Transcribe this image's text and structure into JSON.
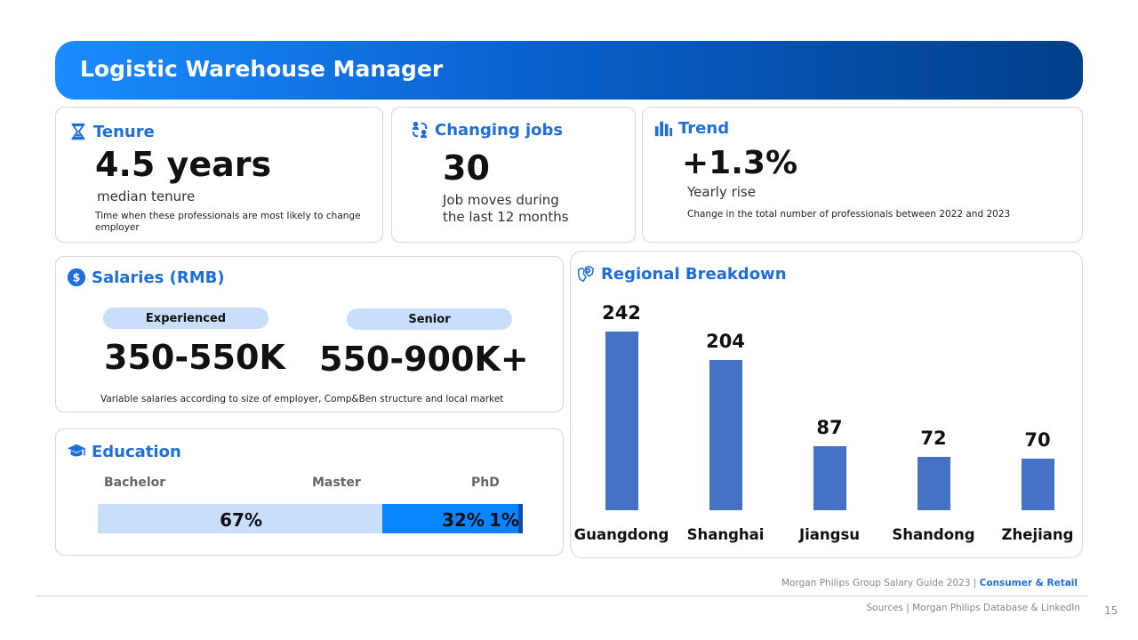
{
  "banner": {
    "title": "Logistic Warehouse Manager"
  },
  "tenure": {
    "title": "Tenure",
    "value": "4.5 years",
    "label": "median tenure",
    "note": "Time when these professionals are most likely to  change employer"
  },
  "changing_jobs": {
    "title": "Changing jobs",
    "value": "30",
    "label_line1": "Job moves during",
    "label_line2": "the last 12 months"
  },
  "trend": {
    "title": "Trend",
    "value": "+1.3%",
    "label": "Yearly rise",
    "note": "Change in the total number of professionals between 2022 and 2023"
  },
  "salaries": {
    "title": "Salaries (RMB)",
    "levels": [
      {
        "label": "Experienced",
        "range": "350-550K"
      },
      {
        "label": "Senior",
        "range": "550-900K+"
      }
    ],
    "note": "Variable salaries according to size of employer, Comp&Ben structure and local market"
  },
  "education": {
    "title": "Education",
    "segments": [
      {
        "label": "Bachelor",
        "percent": 67,
        "display": "67%",
        "color": "#c7defc"
      },
      {
        "label": "Master",
        "percent": 32,
        "display": "32%",
        "color": "#0a84ff"
      },
      {
        "label": "PhD",
        "percent": 1,
        "display": "1%",
        "color": "#0a4fae"
      }
    ]
  },
  "regional": {
    "title": "Regional Breakdown"
  },
  "chart_data": {
    "type": "bar",
    "title": "Regional Breakdown",
    "categories": [
      "Guangdong",
      "Shanghai",
      "Jiangsu",
      "Shandong",
      "Zhejiang"
    ],
    "values": [
      242,
      204,
      87,
      72,
      70
    ],
    "value_labels": [
      "242",
      "204",
      "87",
      "72",
      "70"
    ],
    "xlabel": "",
    "ylabel": "",
    "ylim": [
      0,
      242
    ],
    "color": "#4472c4",
    "grid": false
  },
  "footer": {
    "guide": "Morgan Philips Group Salary Guide 2023 |",
    "segment": "Consumer & Retail",
    "sources": "Sources | Morgan Philips Database & LinkedIn",
    "page_number": "15"
  }
}
